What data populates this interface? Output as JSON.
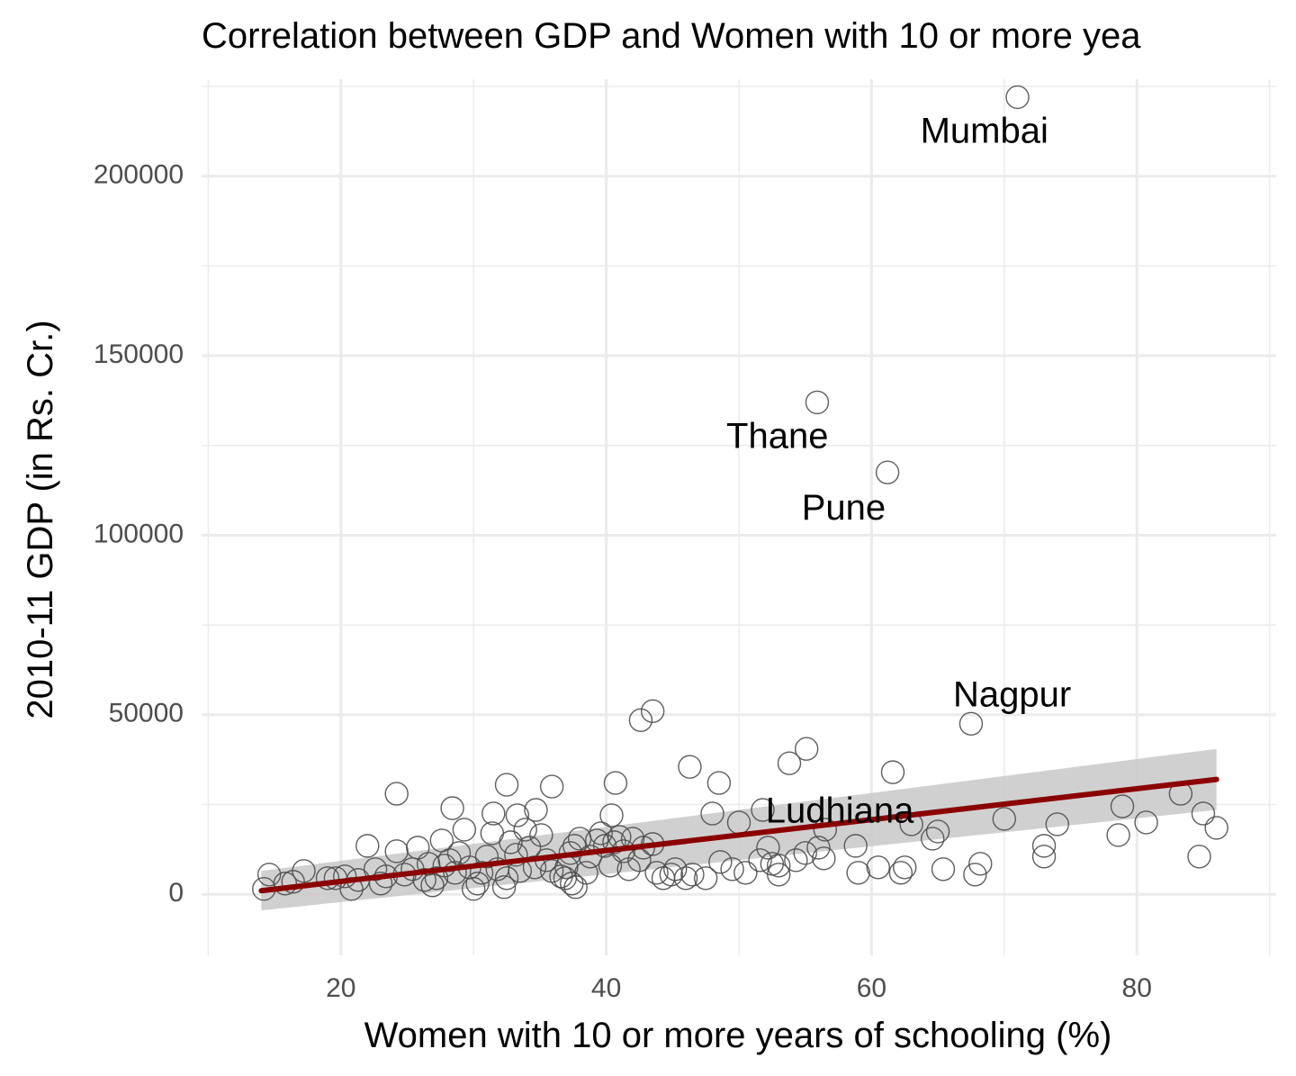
{
  "chart_data": {
    "type": "scatter",
    "title": "Correlation between GDP and Women with 10 or more yea",
    "xlabel": "Women with 10 or more years of schooling (%)",
    "ylabel": "2010-11 GDP (in Rs. Cr.)",
    "xlim": [
      9.5,
      90.5
    ],
    "ylim": [
      -17000,
      227000
    ],
    "xticks": [
      20,
      40,
      60,
      80
    ],
    "yticks": [
      0,
      50000,
      100000,
      150000,
      200000
    ],
    "ytick_labels": [
      "0",
      "50000",
      "100000",
      "150000",
      "200000"
    ],
    "grid": true,
    "colors": {
      "point": "#4d4d4d",
      "trend": "#8b0000",
      "band": "#c8c8c8",
      "grid": "#ebebeb"
    },
    "trend": {
      "x": [
        14,
        86
      ],
      "y": [
        1000,
        32000
      ],
      "band_lower": [
        -4500,
        23500
      ],
      "band_upper": [
        6500,
        40500
      ]
    },
    "labels": [
      {
        "text": "Mumbai",
        "x": 68.5,
        "y": 212000
      },
      {
        "text": "Thane",
        "x": 52.9,
        "y": 127000
      },
      {
        "text": "Pune",
        "x": 57.9,
        "y": 107000
      },
      {
        "text": "Nagpur",
        "x": 70.6,
        "y": 55000
      },
      {
        "text": "Ludhiana",
        "x": 57.6,
        "y": 22700
      }
    ],
    "points": [
      [
        71,
        222000
      ],
      [
        55.9,
        137000
      ],
      [
        61.2,
        117500
      ],
      [
        67.5,
        47500
      ],
      [
        43.5,
        51000
      ],
      [
        42.6,
        48500
      ],
      [
        55.1,
        40500
      ],
      [
        53.8,
        36500
      ],
      [
        46.3,
        35500
      ],
      [
        61.6,
        34000
      ],
      [
        48.5,
        31000
      ],
      [
        40.7,
        31000
      ],
      [
        35.9,
        30000
      ],
      [
        32.5,
        30500
      ],
      [
        24.2,
        28000
      ],
      [
        28.4,
        24000
      ],
      [
        31.5,
        22500
      ],
      [
        33.3,
        22000
      ],
      [
        34.7,
        23500
      ],
      [
        40.4,
        22000
      ],
      [
        48.0,
        22500
      ],
      [
        51.8,
        23500
      ],
      [
        50.0,
        20000
      ],
      [
        56.5,
        18000
      ],
      [
        63.0,
        19500
      ],
      [
        65.0,
        17500
      ],
      [
        64.6,
        15500
      ],
      [
        70.0,
        21000
      ],
      [
        74.0,
        19500
      ],
      [
        78.9,
        24500
      ],
      [
        80.7,
        20000
      ],
      [
        83.3,
        28000
      ],
      [
        85.0,
        22500
      ],
      [
        86.0,
        18500
      ],
      [
        78.6,
        16500
      ],
      [
        73.0,
        13500
      ],
      [
        73.0,
        10500
      ],
      [
        84.7,
        10500
      ],
      [
        68.2,
        8500
      ],
      [
        67.8,
        5500
      ],
      [
        65.4,
        7000
      ],
      [
        62.5,
        7500
      ],
      [
        62.2,
        6000
      ],
      [
        60.5,
        7500
      ],
      [
        59.0,
        6000
      ],
      [
        58.8,
        13500
      ],
      [
        56.4,
        10000
      ],
      [
        56.0,
        13000
      ],
      [
        55.0,
        11500
      ],
      [
        54.3,
        9500
      ],
      [
        53.0,
        8000
      ],
      [
        53.0,
        5500
      ],
      [
        52.5,
        8500
      ],
      [
        52.2,
        13000
      ],
      [
        51.6,
        9500
      ],
      [
        50.5,
        6000
      ],
      [
        49.5,
        7000
      ],
      [
        48.6,
        9000
      ],
      [
        47.5,
        4500
      ],
      [
        46.5,
        5500
      ],
      [
        46.0,
        4500
      ],
      [
        45.2,
        7000
      ],
      [
        44.9,
        5500
      ],
      [
        44.3,
        4500
      ],
      [
        43.8,
        6000
      ],
      [
        43.5,
        14000
      ],
      [
        42.8,
        13000
      ],
      [
        42.5,
        9500
      ],
      [
        42.0,
        15500
      ],
      [
        41.7,
        7000
      ],
      [
        41.3,
        12000
      ],
      [
        41.0,
        16000
      ],
      [
        40.6,
        14500
      ],
      [
        40.3,
        8000
      ],
      [
        39.9,
        13500
      ],
      [
        39.6,
        17000
      ],
      [
        39.3,
        15000
      ],
      [
        38.8,
        10500
      ],
      [
        38.5,
        6000
      ],
      [
        38.0,
        15500
      ],
      [
        37.6,
        13500
      ],
      [
        37.3,
        11500
      ],
      [
        37.0,
        7500
      ],
      [
        36.9,
        4500
      ],
      [
        37.4,
        3000
      ],
      [
        37.7,
        2000
      ],
      [
        36.6,
        5000
      ],
      [
        35.9,
        6500
      ],
      [
        35.5,
        9500
      ],
      [
        35.1,
        16500
      ],
      [
        34.6,
        7500
      ],
      [
        34.2,
        13000
      ],
      [
        33.9,
        18000
      ],
      [
        33.5,
        6500
      ],
      [
        33.2,
        11000
      ],
      [
        32.8,
        14500
      ],
      [
        32.5,
        4500
      ],
      [
        32.3,
        2000
      ],
      [
        31.8,
        7000
      ],
      [
        31.4,
        17000
      ],
      [
        31.0,
        10500
      ],
      [
        30.6,
        6000
      ],
      [
        30.3,
        3000
      ],
      [
        30.0,
        1500
      ],
      [
        29.7,
        7500
      ],
      [
        29.3,
        18000
      ],
      [
        28.9,
        11500
      ],
      [
        28.6,
        6000
      ],
      [
        28.2,
        9500
      ],
      [
        27.8,
        8000
      ],
      [
        27.6,
        15000
      ],
      [
        27.2,
        4500
      ],
      [
        26.9,
        2500
      ],
      [
        26.6,
        8500
      ],
      [
        26.3,
        4000
      ],
      [
        25.8,
        13000
      ],
      [
        25.4,
        7000
      ],
      [
        24.8,
        5500
      ],
      [
        24.2,
        12000
      ],
      [
        23.4,
        5000
      ],
      [
        23.0,
        3000
      ],
      [
        22.6,
        7000
      ],
      [
        22.0,
        13500
      ],
      [
        21.3,
        4000
      ],
      [
        20.8,
        1500
      ],
      [
        20.3,
        5000
      ],
      [
        19.6,
        4500
      ],
      [
        19.0,
        4500
      ],
      [
        17.2,
        6500
      ],
      [
        16.4,
        3500
      ],
      [
        15.8,
        3000
      ],
      [
        14.6,
        5500
      ],
      [
        14.2,
        1500
      ]
    ]
  }
}
